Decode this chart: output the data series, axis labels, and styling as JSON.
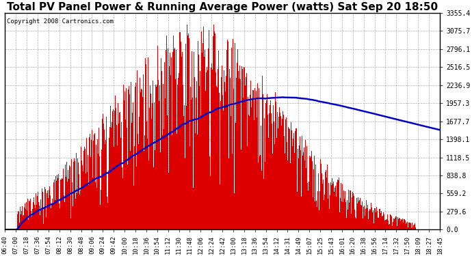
{
  "title": "Total PV Panel Power & Running Average Power (watts) Sat Sep 20 18:50",
  "copyright": "Copyright 2008 Cartronics.com",
  "yticks": [
    0.0,
    279.6,
    559.2,
    838.8,
    1118.5,
    1398.1,
    1677.7,
    1957.3,
    2236.9,
    2516.5,
    2796.1,
    3075.7,
    3355.4
  ],
  "ytick_labels": [
    "0.0",
    "279.6",
    "559.2",
    "838.8",
    "1118.5",
    "1398.1",
    "1677.7",
    "1957.3",
    "2236.9",
    "2516.5",
    "2796.1",
    "3075.7",
    "3355.4"
  ],
  "xtick_labels": [
    "06:40",
    "07:00",
    "07:18",
    "07:36",
    "07:54",
    "08:12",
    "08:30",
    "08:48",
    "09:06",
    "09:24",
    "09:42",
    "10:00",
    "10:18",
    "10:36",
    "10:54",
    "11:12",
    "11:30",
    "11:48",
    "12:06",
    "12:24",
    "12:42",
    "13:00",
    "13:18",
    "13:36",
    "13:54",
    "14:12",
    "14:31",
    "14:49",
    "15:07",
    "15:25",
    "15:43",
    "16:01",
    "16:20",
    "16:38",
    "16:56",
    "17:14",
    "17:32",
    "17:50",
    "18:09",
    "18:27",
    "18:45"
  ],
  "ymax": 3355.4,
  "ymin": 0.0,
  "fill_color": "#DD0000",
  "line_color": "#0000CC",
  "background_color": "#ffffff",
  "grid_color": "#999999",
  "title_fontsize": 11,
  "copyright_fontsize": 6.5
}
